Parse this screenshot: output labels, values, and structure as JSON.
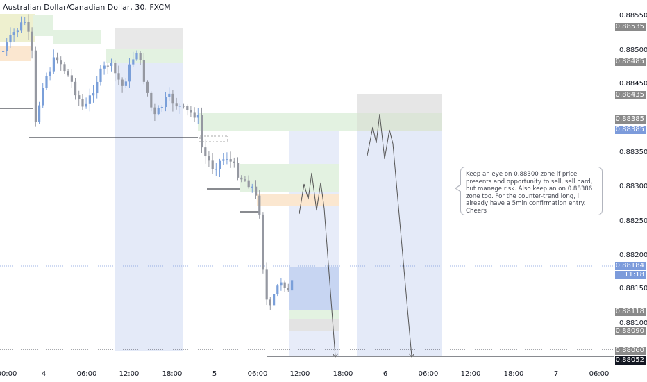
{
  "header": {
    "symbol_title": "Australian Dollar/Canadian Dollar, 30, FXCM"
  },
  "price_axis": {
    "ticks": [
      "0.88550",
      "0.88500",
      "0.88450",
      "0.88350",
      "0.88300",
      "0.88250",
      "0.88200",
      "0.88150",
      "0.88100"
    ],
    "badges": {
      "b88535": "0.88535",
      "b88485": "0.88485",
      "b88435": "0.88435",
      "b88385a": "0.88385",
      "b88385b": "0.88385",
      "current_price": "0.88184",
      "countdown": "11:18",
      "b88118": "0.88118",
      "b88090": "0.88090",
      "b88060": "0.88060",
      "last_line": "0.88052"
    }
  },
  "time_axis": {
    "labels": [
      "00:00",
      "4",
      "06:00",
      "12:00",
      "18:00",
      "5",
      "06:00",
      "12:00",
      "18:00",
      "6",
      "06:00",
      "12:00",
      "18:00",
      "7",
      "06:00"
    ]
  },
  "annotation": {
    "text": "Keep an eye on 0.88300 zone if price presents and opportunity to sell, sell hard, but manage risk. Also keep an on 0.88386 zone too. For the counter-trend long, i already have a 5min confirmation entry. Cheers"
  },
  "colors": {
    "up_candle": "#7a9fd9",
    "down_candle": "#9598a1",
    "zone_green": "#e3f2e1",
    "zone_blue": "#dfe6f7",
    "zone_gray": "#e6e6e6",
    "zone_orange": "#fbe7d0",
    "zone_yellow": "#eef0cf"
  }
}
